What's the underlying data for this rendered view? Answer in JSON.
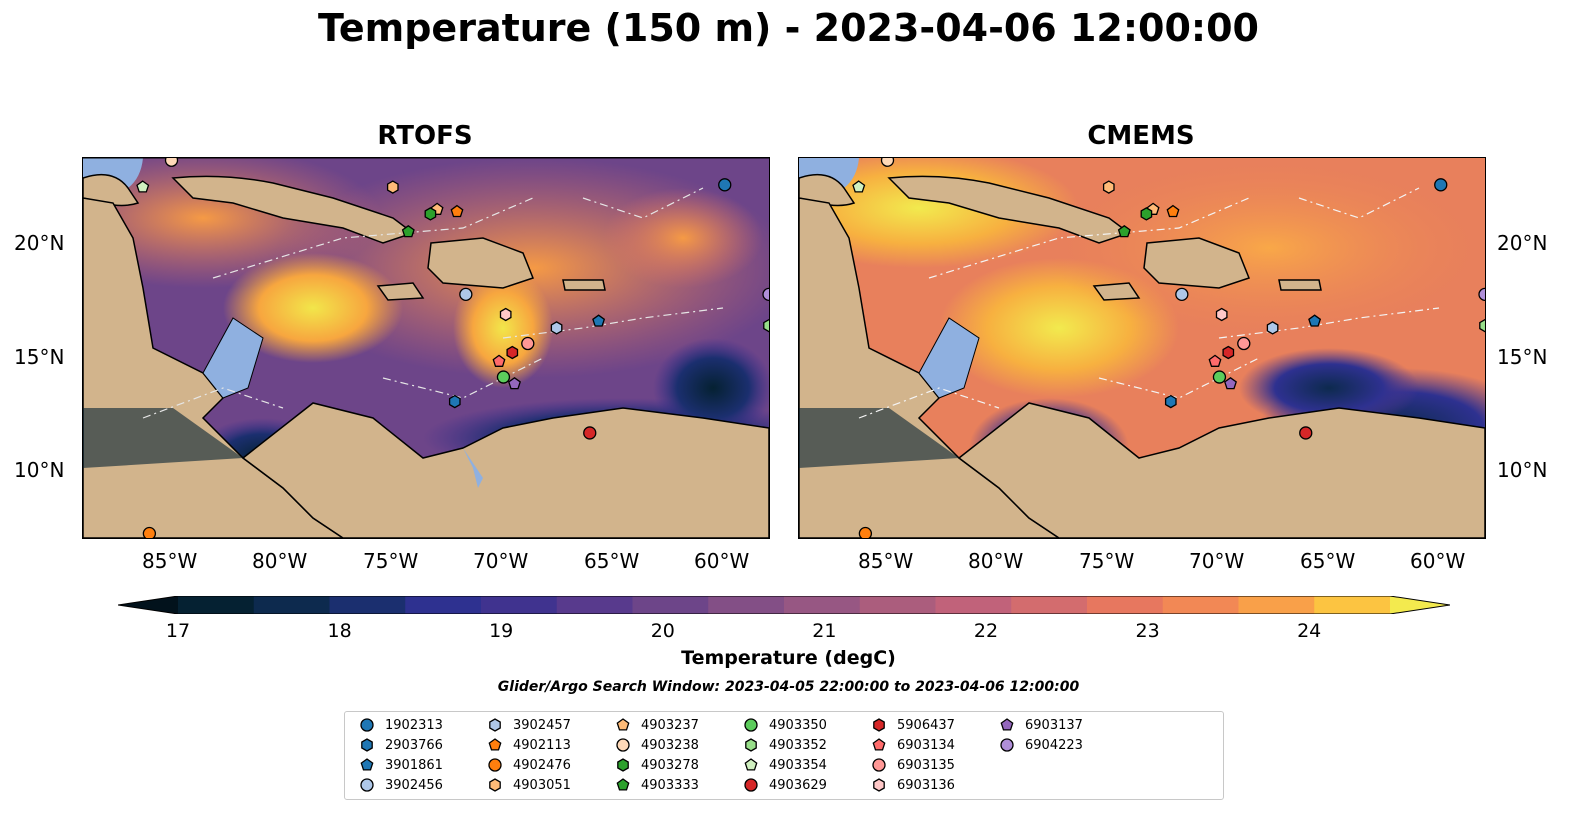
{
  "title": "Temperature (150 m) - 2023-04-06 12:00:00",
  "panels": [
    {
      "title": "RTOFS"
    },
    {
      "title": "CMEMS"
    }
  ],
  "axes": {
    "lon_labels": [
      "85°W",
      "80°W",
      "75°W",
      "70°W",
      "65°W",
      "60°W"
    ],
    "lat_labels": [
      "20°N",
      "15°N",
      "10°N"
    ],
    "extent": {
      "lon": [
        -89,
        -58
      ],
      "lat": [
        7,
        24
      ]
    }
  },
  "colorbar": {
    "label": "Temperature (degC)",
    "ticks": [
      "17",
      "18",
      "19",
      "20",
      "21",
      "22",
      "23",
      "24"
    ],
    "range": [
      17,
      24.5
    ],
    "step": 0.5,
    "colors": [
      "#052132",
      "#0d2a4e",
      "#1b2f6f",
      "#2e3190",
      "#40338f",
      "#583a8d",
      "#6d4589",
      "#834f86",
      "#975783",
      "#ab5d7d",
      "#c1627a",
      "#d36c6e",
      "#e7775f",
      "#f28855",
      "#f9a049",
      "#fcc441"
    ]
  },
  "search_window": "Glider/Argo Search Window: 2023-04-05 22:00:00 to 2023-04-06 12:00:00",
  "legend": [
    {
      "id": "1902313",
      "marker": "circle",
      "color": "#1f77b4"
    },
    {
      "id": "2903766",
      "marker": "hexagon",
      "color": "#1f77b4"
    },
    {
      "id": "3901861",
      "marker": "pentagon",
      "color": "#1f77b4"
    },
    {
      "id": "3902456",
      "marker": "circle",
      "color": "#aec7e8"
    },
    {
      "id": "3902457",
      "marker": "hexagon",
      "color": "#aec7e8"
    },
    {
      "id": "4902113",
      "marker": "pentagon",
      "color": "#ff7f0e"
    },
    {
      "id": "4902476",
      "marker": "circle",
      "color": "#ff7f0e"
    },
    {
      "id": "4903051",
      "marker": "hexagon",
      "color": "#ffbb78"
    },
    {
      "id": "4903237",
      "marker": "pentagon",
      "color": "#ffbb78"
    },
    {
      "id": "4903238",
      "marker": "circle",
      "color": "#ffd9b8"
    },
    {
      "id": "4903278",
      "marker": "hexagon",
      "color": "#2ca02c"
    },
    {
      "id": "4903333",
      "marker": "pentagon",
      "color": "#2ca02c"
    },
    {
      "id": "4903350",
      "marker": "circle",
      "color": "#5ccc5c"
    },
    {
      "id": "4903352",
      "marker": "hexagon",
      "color": "#98df8a"
    },
    {
      "id": "4903354",
      "marker": "pentagon",
      "color": "#d0f0c0"
    },
    {
      "id": "4903629",
      "marker": "circle",
      "color": "#d62728"
    },
    {
      "id": "5906437",
      "marker": "hexagon",
      "color": "#d62728"
    },
    {
      "id": "6903134",
      "marker": "pentagon",
      "color": "#ff6b6b"
    },
    {
      "id": "6903135",
      "marker": "circle",
      "color": "#ff9896"
    },
    {
      "id": "6903136",
      "marker": "hexagon",
      "color": "#ffc8c8"
    },
    {
      "id": "6903137",
      "marker": "pentagon",
      "color": "#9467bd"
    },
    {
      "id": "6904223",
      "marker": "circle",
      "color": "#b08fd9"
    }
  ],
  "floats": [
    {
      "id": "1902313",
      "lon": -60.0,
      "lat": 22.8
    },
    {
      "id": "3901861",
      "lon": -65.7,
      "lat": 16.7
    },
    {
      "id": "2903766",
      "lon": -72.2,
      "lat": 13.1
    },
    {
      "id": "3902456",
      "lon": -71.7,
      "lat": 17.9
    },
    {
      "id": "3902457",
      "lon": -67.6,
      "lat": 16.4
    },
    {
      "id": "4902113",
      "lon": -72.1,
      "lat": 21.6
    },
    {
      "id": "4902476",
      "lon": -86.0,
      "lat": 7.2
    },
    {
      "id": "4903051",
      "lon": -75.0,
      "lat": 22.7
    },
    {
      "id": "4903237",
      "lon": -73.0,
      "lat": 21.7
    },
    {
      "id": "4903238",
      "lon": -85.0,
      "lat": 23.9
    },
    {
      "id": "4903278",
      "lon": -73.3,
      "lat": 21.5
    },
    {
      "id": "4903333",
      "lon": -74.3,
      "lat": 20.7
    },
    {
      "id": "4903350",
      "lon": -70.0,
      "lat": 14.2
    },
    {
      "id": "4903352",
      "lon": -58.0,
      "lat": 16.5
    },
    {
      "id": "4903354",
      "lon": -86.3,
      "lat": 22.7
    },
    {
      "id": "4903629",
      "lon": -66.1,
      "lat": 11.7
    },
    {
      "id": "5906437",
      "lon": -69.6,
      "lat": 15.3
    },
    {
      "id": "6903134",
      "lon": -70.2,
      "lat": 14.9
    },
    {
      "id": "6903135",
      "lon": -68.9,
      "lat": 15.7
    },
    {
      "id": "6903136",
      "lon": -69.9,
      "lat": 17.0
    },
    {
      "id": "6903137",
      "lon": -69.5,
      "lat": 13.9
    },
    {
      "id": "6904223",
      "lon": -58.0,
      "lat": 17.9
    }
  ]
}
